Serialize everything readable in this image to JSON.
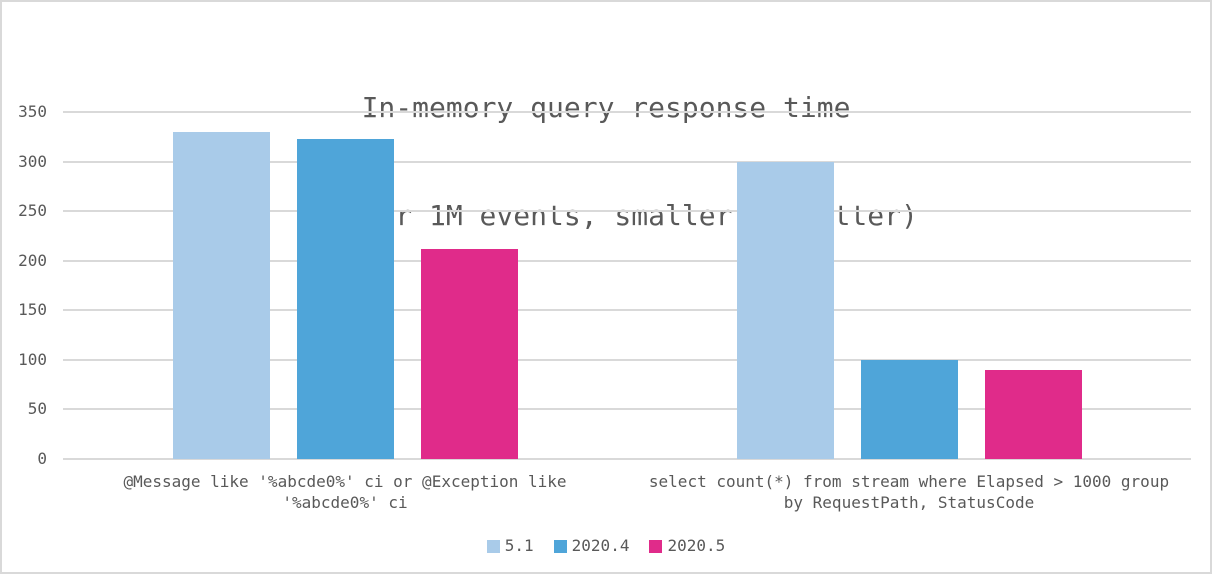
{
  "chart_data": {
    "type": "bar",
    "title": "In-memory query response time",
    "subtitle": "(ms per 1M events, smaller is better)",
    "categories": [
      "@Message like '%abcde0%' ci or @Exception like '%abcde0%' ci",
      "select count(*) from stream where Elapsed > 1000 group by RequestPath, StatusCode"
    ],
    "series": [
      {
        "name": "5.1",
        "color": "#a9cbe9",
        "values": [
          330,
          300
        ]
      },
      {
        "name": "2020.4",
        "color": "#4fa5d9",
        "values": [
          323,
          100
        ]
      },
      {
        "name": "2020.5",
        "color": "#e02b8a",
        "values": [
          212,
          90
        ]
      }
    ],
    "ylim": [
      0,
      350
    ],
    "yticks": [
      0,
      50,
      100,
      150,
      200,
      250,
      300,
      350
    ],
    "grid": true,
    "grid_color": "#d9d9d9",
    "text_color": "#595959",
    "legend_position": "bottom"
  }
}
